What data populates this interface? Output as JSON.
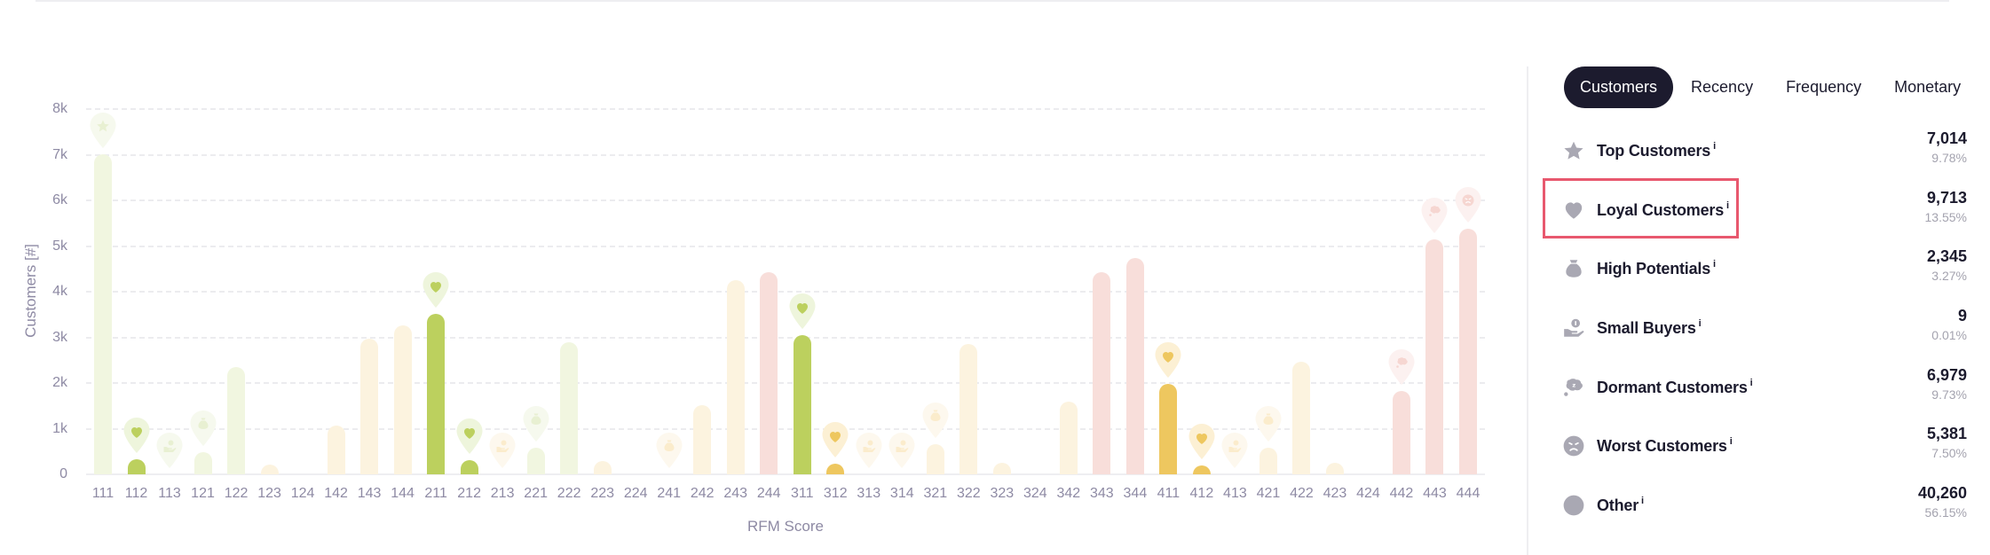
{
  "colors": {
    "green_active": "#bcd05e",
    "green_faded": "#f1f6e0",
    "yellow_active": "#eec75f",
    "yellow_faded": "#fcf3df",
    "red_faded": "#f8deda",
    "pin_green": "#eff5de",
    "pin_yellow": "#fcf1d8",
    "pin_red": "#fbeeec",
    "highlight": "#e8586e",
    "tab_active_bg": "#1c1b2e"
  },
  "chart_data": {
    "type": "bar",
    "title": "",
    "xlabel": "RFM Score",
    "ylabel": "Customers [#]",
    "ylim": [
      0,
      8000
    ],
    "y_ticks": [
      "0",
      "1k",
      "2k",
      "3k",
      "4k",
      "5k",
      "6k",
      "7k",
      "8k"
    ],
    "grid": true,
    "legend": "none (segment list in side panel)",
    "categories": [
      "111",
      "112",
      "113",
      "121",
      "122",
      "123",
      "124",
      "142",
      "143",
      "144",
      "211",
      "212",
      "213",
      "221",
      "222",
      "223",
      "224",
      "241",
      "242",
      "243",
      "244",
      "311",
      "312",
      "313",
      "314",
      "321",
      "322",
      "323",
      "324",
      "342",
      "343",
      "344",
      "411",
      "412",
      "413",
      "421",
      "422",
      "423",
      "424",
      "442",
      "443",
      "444"
    ],
    "values": [
      7014,
      330,
      2,
      480,
      2340,
      220,
      30,
      1070,
      2980,
      3260,
      3520,
      320,
      3,
      580,
      2900,
      290,
      30,
      2,
      1520,
      4260,
      4420,
      3050,
      230,
      1,
      1,
      660,
      2860,
      260,
      30,
      1590,
      4420,
      4730,
      1980,
      200,
      2,
      580,
      2460,
      260,
      30,
      1830,
      5150,
      5381
    ],
    "bar_styles": [
      "gf",
      "ga",
      "gf",
      "gf",
      "gf",
      "yf",
      "yf",
      "yf",
      "yf",
      "yf",
      "ga",
      "ga",
      "yf",
      "gf",
      "gf",
      "yf",
      "yf",
      "yf",
      "yf",
      "yf",
      "rf",
      "ga",
      "ya",
      "yf",
      "yf",
      "yf",
      "yf",
      "yf",
      "yf",
      "yf",
      "rf",
      "rf",
      "ya",
      "ya",
      "yf",
      "yf",
      "yf",
      "yf",
      "rf",
      "rf",
      "rf",
      "rf"
    ],
    "pins": [
      {
        "index": 0,
        "icon": "star",
        "tone": "green",
        "active": false
      },
      {
        "index": 1,
        "icon": "heart",
        "tone": "green",
        "active": true
      },
      {
        "index": 2,
        "icon": "hand-coin",
        "tone": "green",
        "active": false
      },
      {
        "index": 3,
        "icon": "money-bag",
        "tone": "green",
        "active": false
      },
      {
        "index": 10,
        "icon": "heart",
        "tone": "green",
        "active": true
      },
      {
        "index": 11,
        "icon": "heart",
        "tone": "green",
        "active": true
      },
      {
        "index": 12,
        "icon": "hand-coin",
        "tone": "yellow",
        "active": false
      },
      {
        "index": 13,
        "icon": "money-bag",
        "tone": "green",
        "active": false
      },
      {
        "index": 17,
        "icon": "money-bag",
        "tone": "yellow",
        "active": false
      },
      {
        "index": 21,
        "icon": "heart",
        "tone": "green",
        "active": true
      },
      {
        "index": 22,
        "icon": "heart",
        "tone": "yellow",
        "active": true
      },
      {
        "index": 23,
        "icon": "hand-coin",
        "tone": "yellow",
        "active": false
      },
      {
        "index": 24,
        "icon": "hand-coin",
        "tone": "yellow",
        "active": false
      },
      {
        "index": 25,
        "icon": "money-bag",
        "tone": "yellow",
        "active": false
      },
      {
        "index": 32,
        "icon": "heart",
        "tone": "yellow",
        "active": true
      },
      {
        "index": 33,
        "icon": "heart",
        "tone": "yellow",
        "active": true
      },
      {
        "index": 34,
        "icon": "hand-coin",
        "tone": "yellow",
        "active": false
      },
      {
        "index": 35,
        "icon": "money-bag",
        "tone": "yellow",
        "active": false
      },
      {
        "index": 39,
        "icon": "sleep-bubble",
        "tone": "red",
        "active": false
      },
      {
        "index": 40,
        "icon": "sleep-bubble",
        "tone": "red",
        "active": false
      },
      {
        "index": 41,
        "icon": "angry-face",
        "tone": "red",
        "active": false
      }
    ]
  },
  "panel": {
    "tabs": [
      {
        "label": "Customers",
        "active": true
      },
      {
        "label": "Recency",
        "active": false
      },
      {
        "label": "Frequency",
        "active": false
      },
      {
        "label": "Monetary",
        "active": false
      }
    ],
    "info_mark": "i",
    "segments": [
      {
        "name": "Top Customers",
        "icon": "star",
        "count": "7,014",
        "percent": "9.78%"
      },
      {
        "name": "Loyal Customers",
        "icon": "heart",
        "count": "9,713",
        "percent": "13.55%",
        "highlighted": true
      },
      {
        "name": "High Potentials",
        "icon": "money-bag",
        "count": "2,345",
        "percent": "3.27%"
      },
      {
        "name": "Small Buyers",
        "icon": "hand-coin",
        "count": "9",
        "percent": "0.01%"
      },
      {
        "name": "Dormant Customers",
        "icon": "sleep-bubble",
        "count": "6,979",
        "percent": "9.73%"
      },
      {
        "name": "Worst Customers",
        "icon": "angry-face",
        "count": "5,381",
        "percent": "7.50%"
      },
      {
        "name": "Other",
        "icon": "circle",
        "count": "40,260",
        "percent": "56.15%"
      }
    ]
  }
}
